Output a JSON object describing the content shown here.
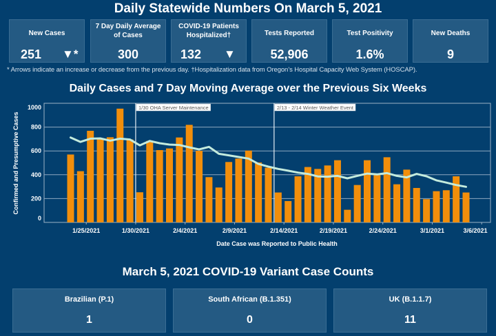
{
  "header": {
    "title": "Daily Statewide Numbers On March 5, 2021"
  },
  "cards": [
    {
      "label": "New Cases",
      "value": "251",
      "indicator": "▼*",
      "indicator_icon": "down-triangle-icon"
    },
    {
      "label": "7 Day Daily Average of Cases",
      "value": "300"
    },
    {
      "label": "COVID-19 Patients Hospitalized†",
      "value": "132",
      "indicator": "▼",
      "indicator_icon": "down-triangle-icon"
    },
    {
      "label": "Tests Reported",
      "value": "52,906"
    },
    {
      "label": "Test Positivity",
      "value": "1.6%"
    },
    {
      "label": "New Deaths",
      "value": "9"
    }
  ],
  "footnote": "* Arrows indicate an increase or decrease from the previous day. †Hospitalization data from Oregon’s Hospital Capacity Web System (HOSCAP).",
  "chart_data": {
    "type": "bar",
    "title": "Daily Cases and 7 Day Moving Average over the Previous Six Weeks",
    "xlabel": "Date Case was Reported to Public Health",
    "ylabel": "Confirmed and Presumptive Cases",
    "ylim": [
      0,
      1000
    ],
    "yticks": [
      0,
      200,
      400,
      600,
      800,
      1000
    ],
    "grid": true,
    "start_date": "1/23/2021",
    "x_tick_labels": [
      "1/25/2021",
      "1/30/2021",
      "2/4/2021",
      "2/9/2021",
      "2/14/2021",
      "2/19/2021",
      "2/24/2021",
      "3/1/2021",
      "3/6/2021"
    ],
    "x_tick_day_index": [
      2,
      7,
      12,
      17,
      22,
      27,
      32,
      37,
      42
    ],
    "categories": [
      "1/23",
      "1/24",
      "1/25",
      "1/26",
      "1/27",
      "1/28",
      "1/29",
      "1/30",
      "1/31",
      "2/1",
      "2/2",
      "2/3",
      "2/4",
      "2/5",
      "2/6",
      "2/7",
      "2/8",
      "2/9",
      "2/10",
      "2/11",
      "2/12",
      "2/13",
      "2/14",
      "2/15",
      "2/16",
      "2/17",
      "2/18",
      "2/19",
      "2/20",
      "2/21",
      "2/22",
      "2/23",
      "2/24",
      "2/25",
      "2/26",
      "2/27",
      "2/28",
      "3/1",
      "3/2",
      "3/3",
      "3/4"
    ],
    "series": [
      {
        "name": "Daily Cases",
        "type": "bar",
        "color": "#f28e0b",
        "values": [
          570,
          430,
          769,
          707,
          715,
          955,
          696,
          253,
          684,
          607,
          621,
          713,
          819,
          601,
          380,
          293,
          507,
          536,
          603,
          503,
          459,
          251,
          179,
          387,
          465,
          449,
          478,
          522,
          106,
          314,
          522,
          397,
          547,
          320,
          443,
          289,
          195,
          262,
          270,
          387,
          251
        ]
      },
      {
        "name": "7 Day Moving Average",
        "type": "line",
        "color": "#c4ebdd",
        "values": [
          713,
          676,
          703,
          705,
          686,
          703,
          696,
          647,
          684,
          665,
          653,
          650,
          630,
          613,
          634,
          576,
          563,
          549,
          536,
          491,
          468,
          449,
          434,
          418,
          407,
          386,
          384,
          391,
          370,
          391,
          410,
          403,
          414,
          391,
          378,
          407,
          387,
          353,
          334,
          314,
          299
        ]
      }
    ],
    "annotations": [
      {
        "day_index": 7,
        "text": "1/30 OHA Server Maintenance"
      },
      {
        "day_index": 21,
        "text": "2/13 - 2/14 Winter Weather Event"
      }
    ]
  },
  "variants": {
    "title": "March 5, 2021 COVID-19 Variant Case Counts",
    "items": [
      {
        "label": "Brazilian (P.1)",
        "value": "1"
      },
      {
        "label": "South African (B.1.351)",
        "value": "0"
      },
      {
        "label": "UK (B.1.1.7)",
        "value": "11"
      }
    ]
  },
  "colors": {
    "background": "#033f6e",
    "card": "#245a83",
    "bar": "#f28e0b",
    "line": "#c4ebdd",
    "grid": "#8fa9c0"
  }
}
